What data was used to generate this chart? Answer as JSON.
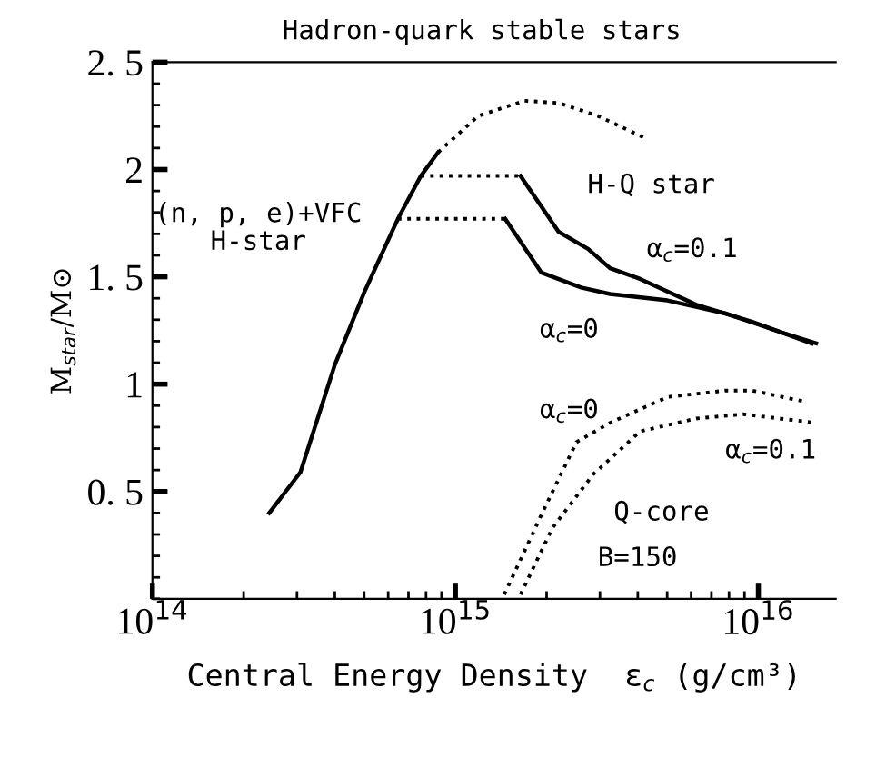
{
  "chart_data": {
    "type": "line",
    "title": "Hadron-quark stable stars",
    "xlabel": "Central Energy Density  ε$_{c}$ (g/cm³)",
    "ylabel": "M$_{star}$/M⊙",
    "log": "x",
    "xlim": [
      100000000000000.0,
      1.8e+16
    ],
    "ylim": [
      0,
      2.5
    ],
    "xticks": [
      {
        "value": 100000000000000.0,
        "label": "10$^{14}$"
      },
      {
        "value": 1000000000000000.0,
        "label": "10$^{15}$"
      },
      {
        "value": 1e+16,
        "label": "10$^{16}$"
      }
    ],
    "yticks": [
      {
        "value": 0.5,
        "label": "0. 5"
      },
      {
        "value": 1,
        "label": "1"
      },
      {
        "value": 1.5,
        "label": "1. 5"
      },
      {
        "value": 2,
        "label": "2"
      },
      {
        "value": 2.5,
        "label": "2. 5"
      }
    ],
    "grid": false,
    "legend": false,
    "marker": "none",
    "series": [
      {
        "color": "#000000",
        "line_style": "solid",
        "x": [
          243000000000000.0,
          308000000000000.0,
          400000000000000.0,
          501000000000000.0,
          646000000000000.0,
          769000000000000.0,
          877000000000000.0
        ],
        "values": [
          0.4,
          0.59,
          1.09,
          1.43,
          1.77,
          1.97,
          2.08
        ]
      },
      {
        "color": "#000000",
        "line_style": "dotted",
        "x": [
          877000000000000.0,
          1190000000000000.0,
          1690000000000000.0,
          2190000000000000.0,
          2950000000000000.0,
          4320000000000000.0
        ],
        "values": [
          2.08,
          2.25,
          2.32,
          2.31,
          2.25,
          2.14
        ]
      },
      {
        "color": "#000000",
        "line_style": "dotted",
        "x": [
          769000000000000.0,
          1640000000000000.0
        ],
        "values": [
          1.97,
          1.97
        ]
      },
      {
        "color": "#000000",
        "line_style": "dotted",
        "x": [
          646000000000000.0,
          1460000000000000.0
        ],
        "values": [
          1.77,
          1.77
        ]
      },
      {
        "color": "#000000",
        "line_style": "solid",
        "x": [
          1640000000000000.0,
          2190000000000000.0,
          2740000000000000.0,
          3240000000000000.0,
          4070000000000000.0,
          6240000000000000.0,
          9550000000000000.0,
          1.5e+16
        ],
        "values": [
          1.97,
          1.71,
          1.63,
          1.54,
          1.49,
          1.37,
          1.29,
          1.19
        ]
      },
      {
        "color": "#000000",
        "line_style": "solid",
        "x": [
          1460000000000000.0,
          1920000000000000.0,
          2600000000000000.0,
          3240000000000000.0,
          5010000000000000.0,
          7760000000000000.0,
          1.2e+16,
          1.55e+16
        ],
        "values": [
          1.77,
          1.52,
          1.45,
          1.42,
          1.39,
          1.33,
          1.24,
          1.19
        ]
      },
      {
        "color": "#000000",
        "line_style": "dotted",
        "x": [
          1450000000000000.0,
          1920000000000000.0,
          2510000000000000.0,
          3240000000000000.0,
          5010000000000000.0,
          7760000000000000.0,
          9550000000000000.0,
          1.41e+16
        ],
        "values": [
          0.02,
          0.39,
          0.73,
          0.82,
          0.94,
          0.97,
          0.97,
          0.92
        ]
      },
      {
        "color": "#000000",
        "line_style": "dotted",
        "x": [
          1640000000000000.0,
          2090000000000000.0,
          2850000000000000.0,
          4070000000000000.0,
          6240000000000000.0,
          8910000000000000.0,
          1.55e+16
        ],
        "values": [
          0.02,
          0.33,
          0.58,
          0.78,
          0.84,
          0.86,
          0.82
        ]
      }
    ],
    "annotations": [
      "(n, p, e)+VFC\nH-star",
      "H-Q star",
      "α$_{c}$=0.1",
      "α$_{c}$=0",
      "α$_{c}$=0",
      "α$_{c}$=0.1",
      "Q-core",
      "B=150"
    ]
  }
}
